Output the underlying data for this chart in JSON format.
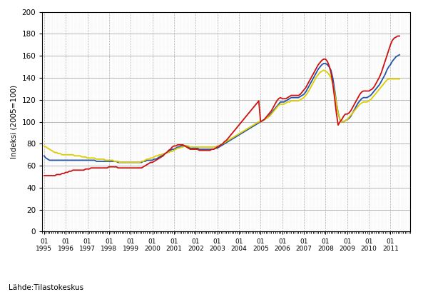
{
  "title": "",
  "ylabel": "Indeksi (2005=100)",
  "xlabel": "",
  "source": "Lähde:Tilastokeskus",
  "ylim": [
    0,
    200
  ],
  "yticks": [
    0,
    20,
    40,
    60,
    80,
    100,
    120,
    140,
    160,
    180,
    200
  ],
  "line_colors": {
    "koko": "#2255AA",
    "kotimaan": "#DDCC00",
    "vienti": "#CC1111"
  },
  "koko_likevaihto": [
    69,
    67,
    66,
    65,
    65,
    65,
    65,
    65,
    65,
    65,
    65,
    65,
    65,
    65,
    65,
    65,
    65,
    65,
    65,
    65,
    65,
    65,
    65,
    65,
    65,
    65,
    65,
    65,
    65,
    64,
    64,
    64,
    64,
    64,
    64,
    64,
    64,
    64,
    64,
    64,
    64,
    63,
    63,
    63,
    63,
    63,
    63,
    63,
    63,
    63,
    63,
    63,
    63,
    63,
    63,
    64,
    64,
    65,
    65,
    65,
    65,
    66,
    66,
    67,
    68,
    69,
    70,
    71,
    72,
    73,
    74,
    75,
    75,
    76,
    77,
    77,
    78,
    78,
    78,
    78,
    77,
    76,
    76,
    76,
    76,
    76,
    75,
    75,
    75,
    75,
    75,
    75,
    75,
    75,
    75,
    76,
    76,
    77,
    78,
    79,
    80,
    81,
    82,
    83,
    84,
    85,
    86,
    87,
    88,
    89,
    90,
    91,
    92,
    93,
    94,
    95,
    96,
    97,
    98,
    99,
    100,
    101,
    102,
    103,
    104,
    106,
    108,
    110,
    112,
    114,
    116,
    118,
    118,
    118,
    119,
    120,
    121,
    122,
    122,
    122,
    122,
    122,
    123,
    124,
    125,
    127,
    130,
    133,
    136,
    139,
    142,
    145,
    148,
    150,
    152,
    153,
    153,
    152,
    150,
    147,
    140,
    130,
    118,
    108,
    102,
    100,
    100,
    101,
    102,
    103,
    105,
    108,
    111,
    114,
    117,
    119,
    121,
    122,
    122,
    122,
    123,
    124,
    126,
    128,
    130,
    132,
    134,
    137,
    140,
    143,
    147,
    150,
    152,
    155,
    157,
    159,
    160,
    161
  ],
  "kotimaan_likevaihto": [
    78,
    77,
    76,
    75,
    74,
    73,
    72,
    72,
    71,
    71,
    70,
    70,
    70,
    70,
    70,
    70,
    70,
    69,
    69,
    69,
    69,
    68,
    68,
    68,
    67,
    67,
    67,
    67,
    67,
    66,
    66,
    66,
    66,
    66,
    65,
    65,
    65,
    65,
    65,
    64,
    64,
    64,
    63,
    63,
    63,
    63,
    63,
    63,
    63,
    63,
    63,
    63,
    63,
    63,
    64,
    64,
    65,
    66,
    66,
    67,
    67,
    68,
    69,
    69,
    70,
    70,
    71,
    71,
    72,
    72,
    73,
    73,
    74,
    75,
    76,
    76,
    77,
    77,
    78,
    78,
    78,
    77,
    77,
    77,
    77,
    77,
    77,
    77,
    77,
    77,
    77,
    77,
    77,
    77,
    77,
    77,
    78,
    78,
    79,
    80,
    81,
    82,
    83,
    84,
    85,
    86,
    87,
    88,
    89,
    90,
    91,
    92,
    93,
    94,
    95,
    96,
    97,
    98,
    99,
    100,
    100,
    101,
    102,
    103,
    104,
    105,
    107,
    109,
    111,
    113,
    115,
    116,
    116,
    116,
    117,
    118,
    118,
    119,
    119,
    119,
    119,
    119,
    120,
    121,
    122,
    124,
    126,
    129,
    132,
    135,
    138,
    141,
    143,
    145,
    146,
    147,
    146,
    145,
    143,
    140,
    135,
    127,
    117,
    108,
    102,
    100,
    100,
    101,
    102,
    104,
    106,
    108,
    110,
    112,
    114,
    116,
    117,
    118,
    118,
    118,
    119,
    120,
    122,
    124,
    126,
    128,
    130,
    132,
    134,
    136,
    138,
    139,
    139,
    139,
    139,
    139,
    139,
    139
  ],
  "vienti_likevaihto": [
    51,
    51,
    51,
    51,
    51,
    51,
    51,
    52,
    52,
    52,
    53,
    53,
    54,
    54,
    55,
    55,
    56,
    56,
    56,
    56,
    56,
    56,
    56,
    57,
    57,
    57,
    58,
    58,
    58,
    58,
    58,
    58,
    58,
    58,
    58,
    58,
    59,
    59,
    59,
    59,
    59,
    58,
    58,
    58,
    58,
    58,
    58,
    58,
    58,
    58,
    58,
    58,
    58,
    58,
    58,
    59,
    60,
    61,
    62,
    63,
    63,
    64,
    65,
    66,
    67,
    68,
    69,
    71,
    72,
    74,
    75,
    77,
    78,
    78,
    79,
    79,
    79,
    79,
    78,
    77,
    76,
    75,
    75,
    75,
    75,
    75,
    74,
    74,
    74,
    74,
    74,
    74,
    74,
    75,
    75,
    76,
    77,
    78,
    79,
    80,
    82,
    83,
    85,
    87,
    89,
    91,
    93,
    95,
    97,
    99,
    101,
    103,
    105,
    107,
    109,
    111,
    113,
    115,
    117,
    119,
    100,
    101,
    102,
    104,
    106,
    108,
    110,
    113,
    116,
    119,
    121,
    122,
    121,
    121,
    121,
    122,
    123,
    124,
    124,
    124,
    124,
    124,
    125,
    127,
    129,
    131,
    134,
    137,
    140,
    143,
    146,
    149,
    152,
    154,
    156,
    157,
    157,
    155,
    151,
    145,
    135,
    122,
    108,
    97,
    100,
    102,
    105,
    107,
    107,
    108,
    110,
    113,
    116,
    119,
    122,
    125,
    127,
    128,
    128,
    128,
    128,
    129,
    130,
    132,
    135,
    138,
    141,
    145,
    150,
    155,
    160,
    165,
    170,
    174,
    176,
    177,
    178,
    178
  ],
  "start_year": 1995,
  "end_year": 2011,
  "end_month": 10
}
